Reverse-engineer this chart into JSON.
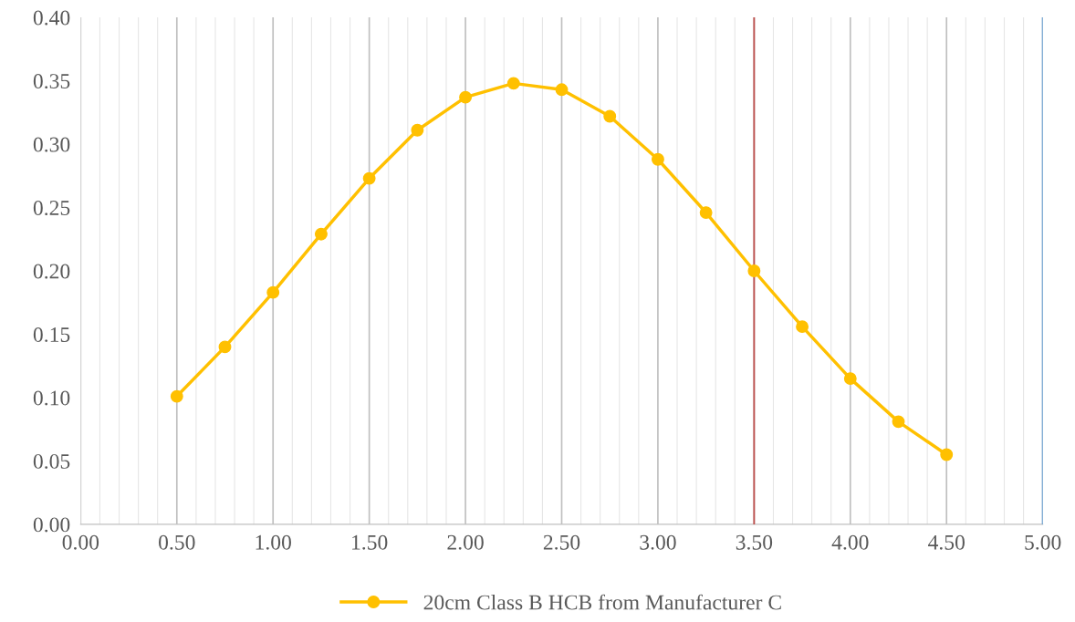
{
  "chart_data": {
    "type": "line",
    "x": [
      0.5,
      0.75,
      1.0,
      1.25,
      1.5,
      1.75,
      2.0,
      2.25,
      2.5,
      2.75,
      3.0,
      3.25,
      3.5,
      3.75,
      4.0,
      4.25,
      4.5
    ],
    "series": [
      {
        "name": "20cm Class B HCB from Manufacturer C",
        "color": "#ffc000",
        "values": [
          0.101,
          0.14,
          0.183,
          0.229,
          0.273,
          0.311,
          0.337,
          0.348,
          0.343,
          0.322,
          0.288,
          0.246,
          0.2,
          0.156,
          0.115,
          0.081,
          0.055
        ]
      }
    ],
    "xlim": [
      0,
      5
    ],
    "ylim": [
      0,
      0.4
    ],
    "xticks": [
      {
        "value": 0,
        "label": "0.00"
      },
      {
        "value": 0.1,
        "label": null
      },
      {
        "value": 0.2,
        "label": null
      },
      {
        "value": 0.3,
        "label": null
      },
      {
        "value": 0.4,
        "label": null
      },
      {
        "value": 0.5,
        "label": "0.50"
      },
      {
        "value": 0.6,
        "label": null
      },
      {
        "value": 0.7,
        "label": null
      },
      {
        "value": 0.8,
        "label": null
      },
      {
        "value": 0.9,
        "label": null
      },
      {
        "value": 1,
        "label": "1.00"
      },
      {
        "value": 1.1,
        "label": null
      },
      {
        "value": 1.2,
        "label": null
      },
      {
        "value": 1.3,
        "label": null
      },
      {
        "value": 1.4,
        "label": null
      },
      {
        "value": 1.5,
        "label": "1.50"
      },
      {
        "value": 1.6,
        "label": null
      },
      {
        "value": 1.7,
        "label": null
      },
      {
        "value": 1.8,
        "label": null
      },
      {
        "value": 1.9,
        "label": null
      },
      {
        "value": 2,
        "label": "2.00"
      },
      {
        "value": 2.1,
        "label": null
      },
      {
        "value": 2.2,
        "label": null
      },
      {
        "value": 2.3,
        "label": null
      },
      {
        "value": 2.4,
        "label": null
      },
      {
        "value": 2.5,
        "label": "2.50"
      },
      {
        "value": 2.6,
        "label": null
      },
      {
        "value": 2.7,
        "label": null
      },
      {
        "value": 2.8,
        "label": null
      },
      {
        "value": 2.9,
        "label": null
      },
      {
        "value": 3,
        "label": "3.00"
      },
      {
        "value": 3.1,
        "label": null
      },
      {
        "value": 3.2,
        "label": null
      },
      {
        "value": 3.3,
        "label": null
      },
      {
        "value": 3.4,
        "label": null
      },
      {
        "value": 3.5,
        "label": "3.50"
      },
      {
        "value": 3.6,
        "label": null
      },
      {
        "value": 3.7,
        "label": null
      },
      {
        "value": 3.8,
        "label": null
      },
      {
        "value": 3.9,
        "label": null
      },
      {
        "value": 4,
        "label": "4.00"
      },
      {
        "value": 4.1,
        "label": null
      },
      {
        "value": 4.2,
        "label": null
      },
      {
        "value": 4.3,
        "label": null
      },
      {
        "value": 4.4,
        "label": null
      },
      {
        "value": 4.5,
        "label": "4.50"
      },
      {
        "value": 4.6,
        "label": null
      },
      {
        "value": 4.7,
        "label": null
      },
      {
        "value": 4.8,
        "label": null
      },
      {
        "value": 4.9,
        "label": null
      },
      {
        "value": 5,
        "label": "5.00"
      }
    ],
    "yticks": [
      {
        "value": 0,
        "label": "0.00"
      },
      {
        "value": 0.05,
        "label": "0.05"
      },
      {
        "value": 0.1,
        "label": "0.10"
      },
      {
        "value": 0.15,
        "label": "0.15"
      },
      {
        "value": 0.2,
        "label": "0.20"
      },
      {
        "value": 0.25,
        "label": "0.25"
      },
      {
        "value": 0.3,
        "label": "0.30"
      },
      {
        "value": 0.35,
        "label": "0.35"
      },
      {
        "value": 0.4,
        "label": "0.40"
      }
    ],
    "ref_lines": [
      {
        "axis": "x",
        "value": 3.5,
        "color": "#c0504d"
      },
      {
        "axis": "x",
        "value": 5,
        "color": "#5b9bd5"
      }
    ],
    "grid": "x",
    "legend": "bottom",
    "marker": "circle",
    "line_style": "solid"
  }
}
